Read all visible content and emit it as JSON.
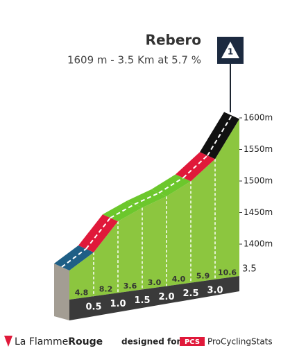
{
  "chart_data": {
    "type": "climb-profile",
    "title": "Rebero",
    "subtitle": "1609 m - 3.5 Km at 5.7 %",
    "category_badge": "1",
    "distance_labels": [
      "0.5",
      "1.0",
      "1.5",
      "2.0",
      "2.5",
      "3.0",
      "3.5"
    ],
    "values": [
      4.8,
      8.2,
      3.6,
      3.0,
      4.0,
      5.9,
      10.6
    ],
    "value_labels": [
      "4.8",
      "8.2",
      "3.6",
      "3.0",
      "4.0",
      "5.9",
      "10.6"
    ],
    "colors": [
      "#1f5f86",
      "#e0193a",
      "#6cc72c",
      "#6cc72c",
      "#6cc72c",
      "#e0193a",
      "#111111"
    ],
    "ylim": [
      1350,
      1625
    ],
    "yticks": [
      {
        "value": 1400,
        "label": "1400m"
      },
      {
        "value": 1450,
        "label": "1450m"
      },
      {
        "value": 1500,
        "label": "1500m"
      },
      {
        "value": 1550,
        "label": "1550m"
      },
      {
        "value": 1600,
        "label": "1600m"
      }
    ]
  },
  "footer": {
    "brand_left": "La Flamme",
    "brand_right": "Rouge",
    "designed_for": "designed for",
    "pcs": "PCS",
    "site": "ProCyclingStats"
  }
}
